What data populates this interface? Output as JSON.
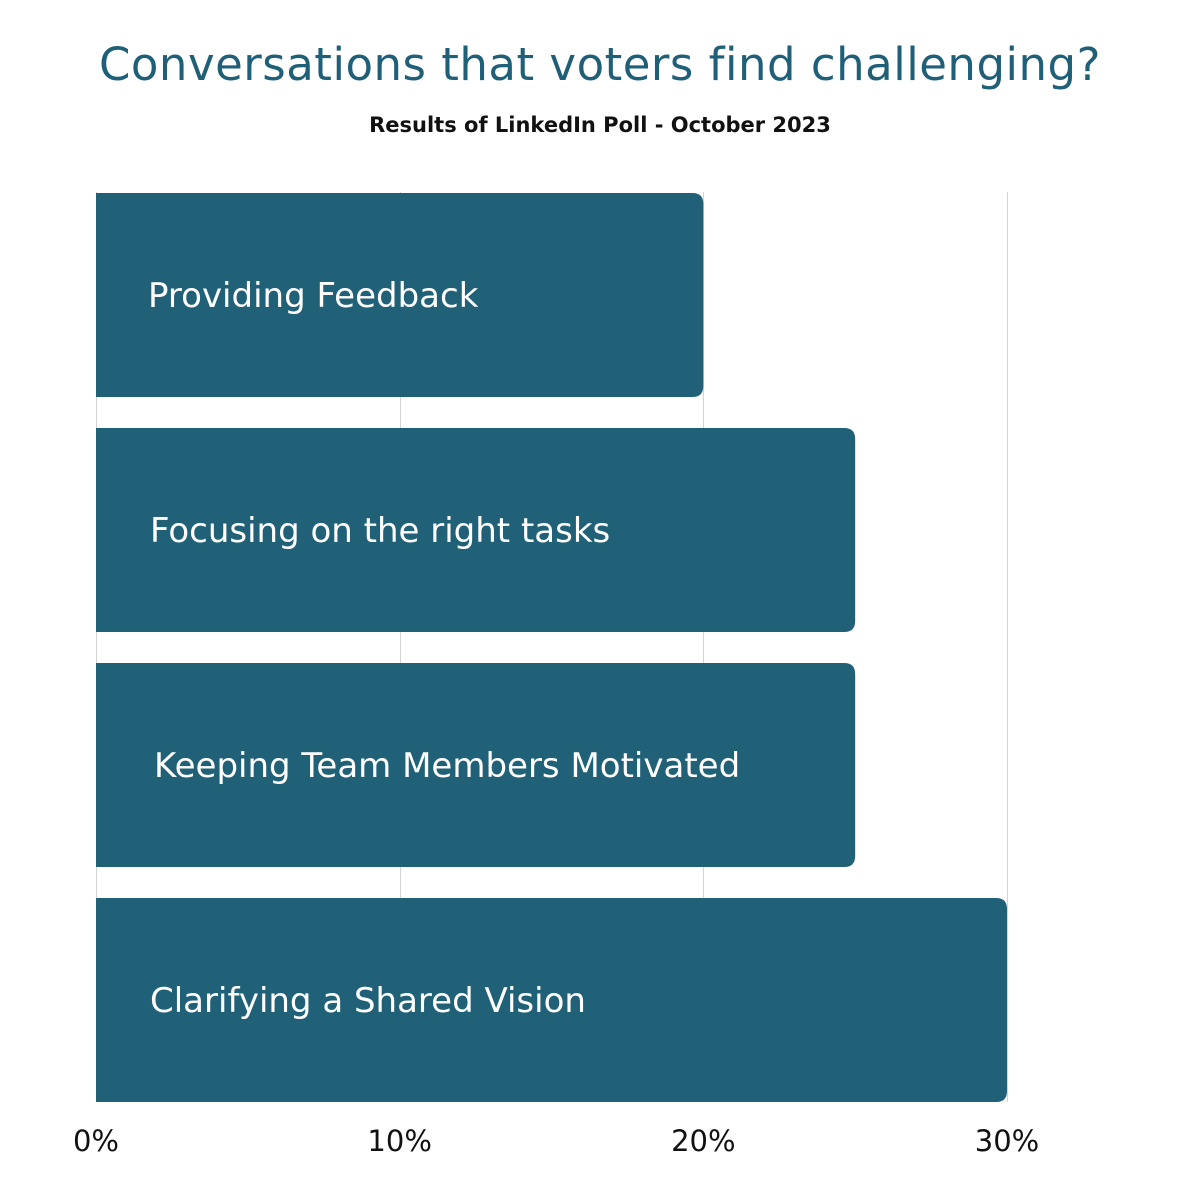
{
  "colors": {
    "title": "#205f78",
    "bar": "#216178",
    "grid": "#d4d4d4",
    "text_on_bar": "#ffffff"
  },
  "chart_data": {
    "type": "bar",
    "orientation": "horizontal",
    "title": "Conversations that voters find challenging?",
    "subtitle": "Results of LinkedIn Poll - October 2023",
    "categories": [
      "Providing Feedback",
      "Focusing on the right tasks",
      "Keeping Team Members Motivated",
      "Clarifying a Shared Vision"
    ],
    "values": [
      20,
      25,
      25,
      30
    ],
    "unit": "%",
    "xlim": [
      0,
      30
    ],
    "xticks": [
      "0%",
      "10%",
      "20%",
      "30%"
    ],
    "grid": true,
    "labels_inside_bars": true
  }
}
